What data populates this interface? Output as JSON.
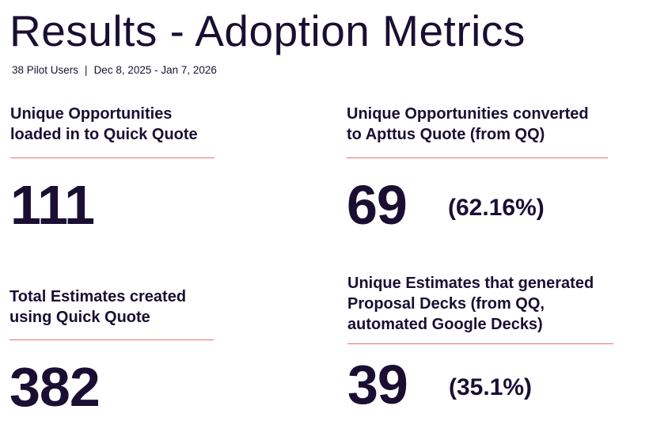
{
  "page": {
    "title": "Results - Adoption Metrics",
    "subtitle_users": "38 Pilot Users",
    "subtitle_separator": "|",
    "subtitle_range": "Dec 8, 2025 - Jan 7, 2026"
  },
  "metrics": [
    {
      "label_line1": "Unique Opportunities",
      "label_line2": "loaded in to Quick Quote",
      "value": "111"
    },
    {
      "label_line1": "Unique Opportunities converted",
      "label_line2": "to Apttus Quote (from QQ)",
      "value": "69",
      "percent": "(62.16%)"
    },
    {
      "label_line1": "Total Estimates created",
      "label_line2": "using Quick Quote",
      "value": "382"
    },
    {
      "label_line1": "Unique Estimates that generated",
      "label_line2": "Proposal Decks (from QQ,",
      "label_line3": "automated Google Decks)",
      "value": "39",
      "percent": "(35.1%)"
    }
  ],
  "colors": {
    "text": "#1a0f33",
    "divider": "#e8706f",
    "background": "#ffffff"
  }
}
